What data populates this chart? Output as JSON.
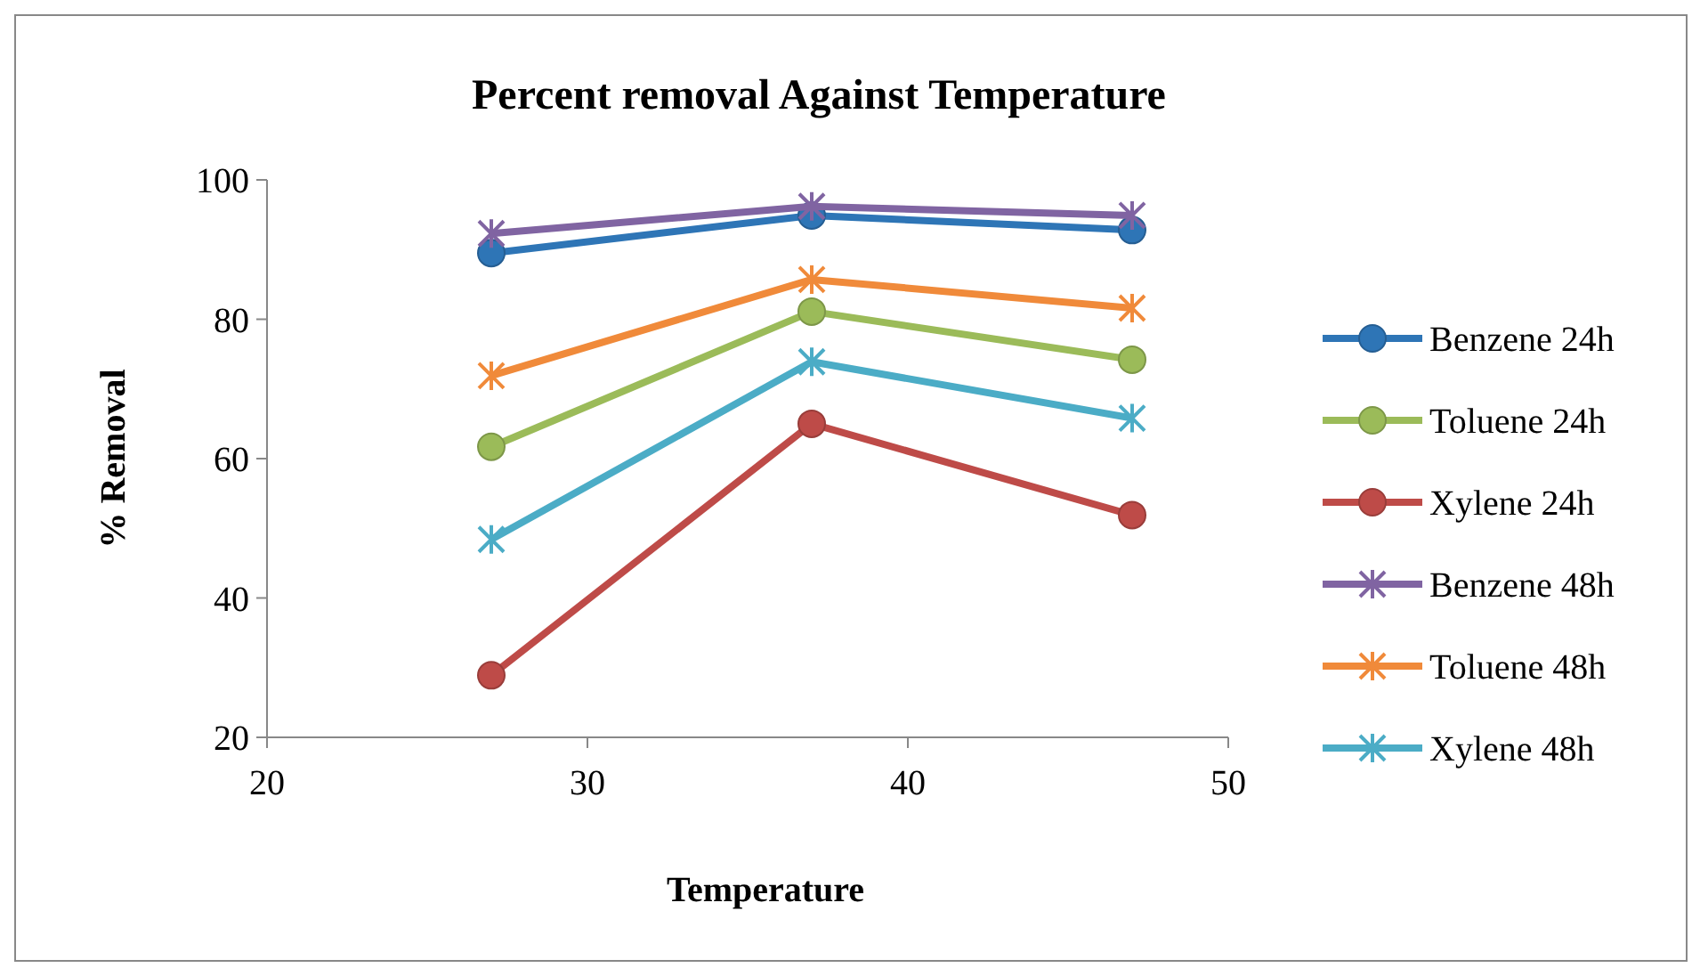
{
  "chart_data": {
    "type": "line",
    "title": "Percent removal Against Temperature",
    "xlabel": "Temperature",
    "ylabel": "% Removal",
    "x": [
      27,
      37,
      47
    ],
    "xlim": [
      20,
      50
    ],
    "xticks": [
      20,
      30,
      40,
      50
    ],
    "ylim": [
      20,
      100
    ],
    "yticks": [
      20,
      40,
      60,
      80,
      100
    ],
    "grid": false,
    "legend": "right",
    "series": [
      {
        "name": "Benzene 24h",
        "color": "#2e75b6",
        "marker": "circle",
        "values": [
          89.5,
          94.9,
          92.8
        ]
      },
      {
        "name": "Toluene 24h",
        "color": "#9bbb59",
        "marker": "circle",
        "values": [
          61.7,
          81.1,
          74.2
        ]
      },
      {
        "name": "Xylene 24h",
        "color": "#be4b48",
        "marker": "circle",
        "values": [
          28.9,
          65,
          51.9
        ]
      },
      {
        "name": "Benzene 48h",
        "color": "#8064a2",
        "marker": "cross",
        "values": [
          92.3,
          96.2,
          94.9
        ]
      },
      {
        "name": "Toluene 48h",
        "color": "#f08a3a",
        "marker": "cross",
        "values": [
          71.9,
          85.7,
          81.6
        ]
      },
      {
        "name": "Xylene 48h",
        "color": "#4bacc6",
        "marker": "cross",
        "values": [
          48.4,
          73.9,
          65.8
        ]
      }
    ]
  }
}
